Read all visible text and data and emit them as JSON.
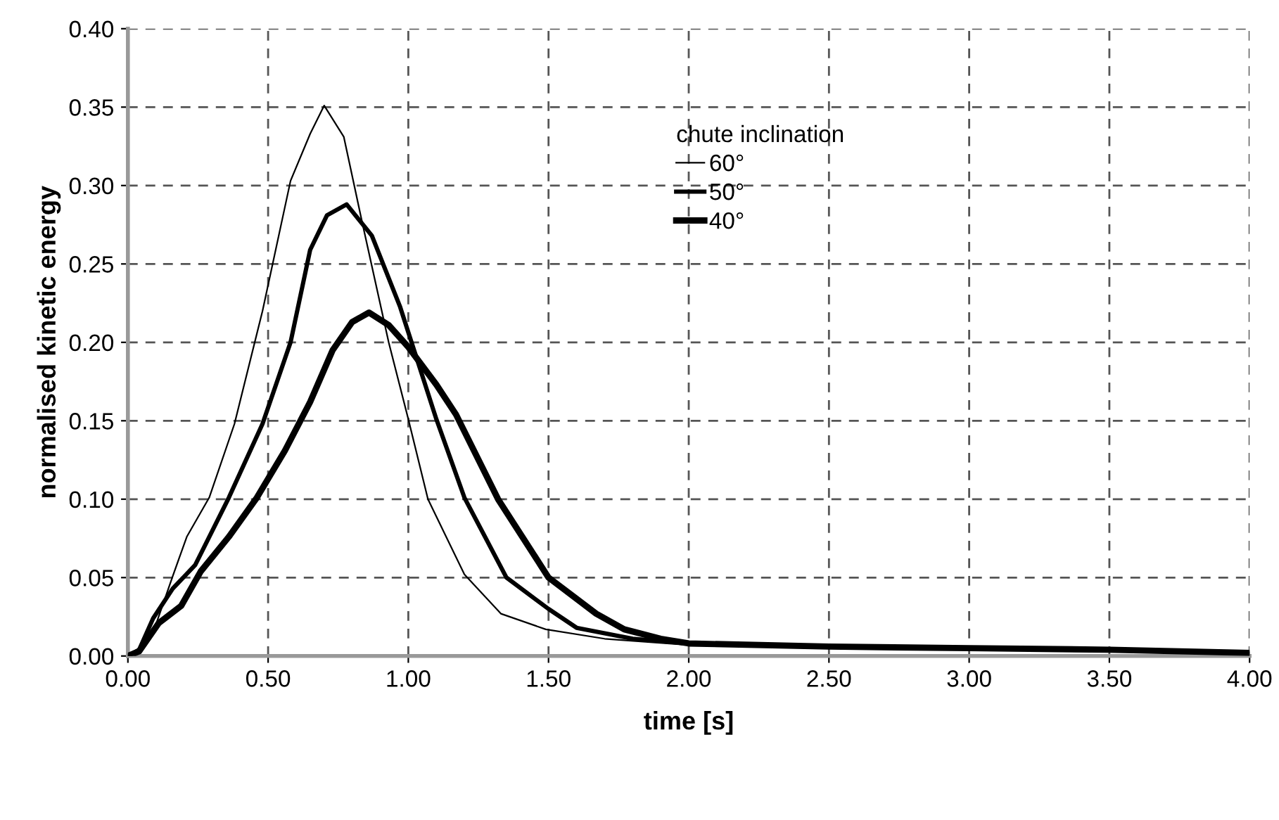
{
  "chart_data": {
    "type": "line",
    "xlabel": "time [s]",
    "ylabel": "normalised kinetic energy",
    "legend_title": "chute inclination",
    "xlim": [
      0,
      4
    ],
    "ylim": [
      0,
      0.4
    ],
    "xticks": [
      {
        "value": 0,
        "label": "0.00"
      },
      {
        "value": 0.5,
        "label": "0.50"
      },
      {
        "value": 1,
        "label": "1.00"
      },
      {
        "value": 1.5,
        "label": "1.50"
      },
      {
        "value": 2,
        "label": "2.00"
      },
      {
        "value": 2.5,
        "label": "2.50"
      },
      {
        "value": 3,
        "label": "3.00"
      },
      {
        "value": 3.5,
        "label": "3.50"
      },
      {
        "value": 4,
        "label": "4.00"
      }
    ],
    "yticks": [
      {
        "value": 0,
        "label": "0.00"
      },
      {
        "value": 0.05,
        "label": "0.05"
      },
      {
        "value": 0.1,
        "label": "0.10"
      },
      {
        "value": 0.15,
        "label": "0.15"
      },
      {
        "value": 0.2,
        "label": "0.20"
      },
      {
        "value": 0.25,
        "label": "0.25"
      },
      {
        "value": 0.3,
        "label": "0.30"
      },
      {
        "value": 0.35,
        "label": "0.35"
      },
      {
        "value": 0.4,
        "label": "0.40"
      }
    ],
    "grid": true,
    "legend": "top",
    "marker": "none",
    "line_style": "solid",
    "series": [
      {
        "name": "60°",
        "color": "#000000",
        "x": [
          0,
          0.04,
          0.09,
          0.16,
          0.21,
          0.29,
          0.38,
          0.48,
          0.58,
          0.65,
          0.7,
          0.77,
          0.83,
          0.93,
          1.0,
          1.07,
          1.2,
          1.33,
          1.49,
          1.7,
          2.0,
          2.5,
          3.0,
          3.5,
          4.0
        ],
        "values": [
          0,
          0.004,
          0.015,
          0.051,
          0.076,
          0.101,
          0.148,
          0.22,
          0.303,
          0.333,
          0.351,
          0.331,
          0.281,
          0.2,
          0.151,
          0.1,
          0.052,
          0.027,
          0.017,
          0.011,
          0.007,
          0.005,
          0.004,
          0.003,
          0.002
        ]
      },
      {
        "name": "50°",
        "color": "#000000",
        "x": [
          0,
          0.04,
          0.09,
          0.16,
          0.24,
          0.36,
          0.48,
          0.58,
          0.65,
          0.71,
          0.78,
          0.87,
          0.97,
          1.1,
          1.2,
          1.35,
          1.5,
          1.6,
          1.8,
          2.0,
          2.5,
          3.0,
          3.5,
          4.0
        ],
        "values": [
          0,
          0.004,
          0.024,
          0.043,
          0.058,
          0.101,
          0.148,
          0.2,
          0.259,
          0.281,
          0.288,
          0.268,
          0.223,
          0.151,
          0.101,
          0.05,
          0.03,
          0.018,
          0.011,
          0.008,
          0.006,
          0.005,
          0.004,
          0.002
        ]
      },
      {
        "name": "40°",
        "color": "#000000",
        "x": [
          0,
          0.04,
          0.11,
          0.19,
          0.26,
          0.36,
          0.46,
          0.56,
          0.65,
          0.73,
          0.8,
          0.86,
          0.93,
          1.0,
          1.1,
          1.17,
          1.32,
          1.5,
          1.67,
          1.77,
          1.9,
          2.0,
          2.5,
          3.0,
          3.5,
          4.0
        ],
        "values": [
          0,
          0.003,
          0.021,
          0.032,
          0.054,
          0.076,
          0.101,
          0.131,
          0.162,
          0.195,
          0.213,
          0.219,
          0.211,
          0.197,
          0.173,
          0.154,
          0.1,
          0.05,
          0.027,
          0.017,
          0.011,
          0.008,
          0.006,
          0.005,
          0.004,
          0.002
        ]
      }
    ]
  }
}
